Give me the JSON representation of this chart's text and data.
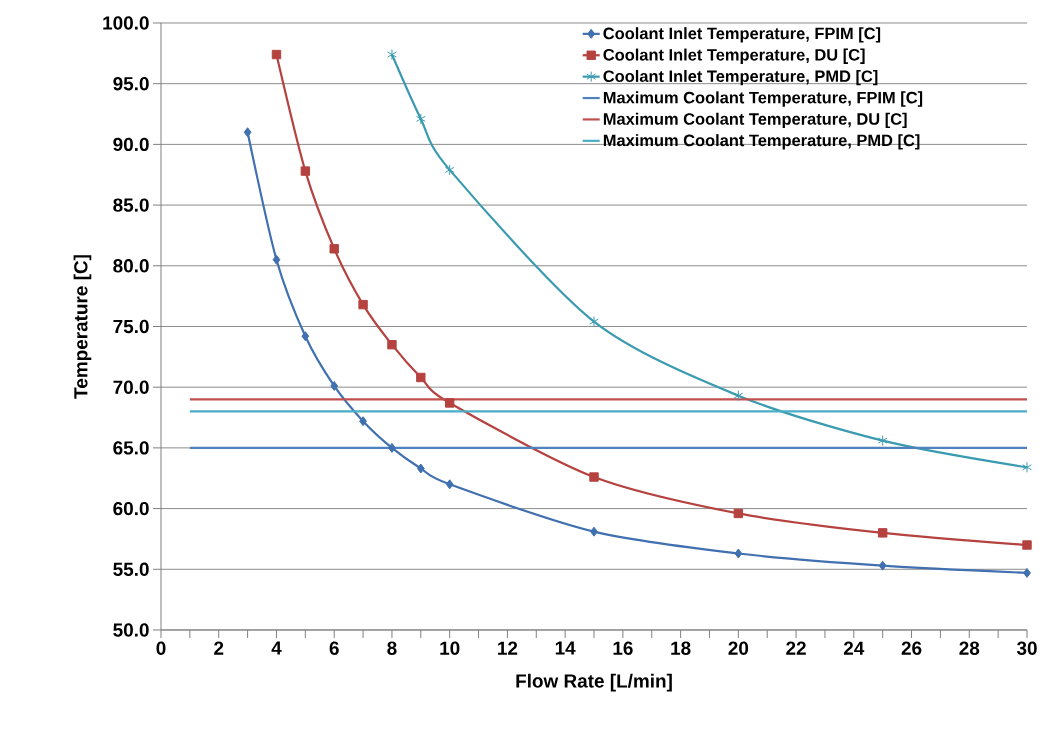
{
  "chart_data": {
    "type": "line",
    "xlabel": "Flow Rate [L/min]",
    "ylabel": "Temperature [C]",
    "xlim": [
      0,
      30
    ],
    "ylim": [
      50,
      100
    ],
    "xticks": [
      0,
      {
        "value": 1,
        "label": null
      },
      2,
      {
        "value": 3,
        "label": null
      },
      4,
      {
        "value": 5,
        "label": null
      },
      6,
      {
        "value": 7,
        "label": null
      },
      8,
      {
        "value": 9,
        "label": null
      },
      10,
      {
        "value": 11,
        "label": null
      },
      12,
      {
        "value": 13,
        "label": null
      },
      14,
      {
        "value": 15,
        "label": null
      },
      16,
      {
        "value": 17,
        "label": null
      },
      18,
      {
        "value": 19,
        "label": null
      },
      20,
      {
        "value": 21,
        "label": null
      },
      22,
      {
        "value": 23,
        "label": null
      },
      24,
      {
        "value": 25,
        "label": null
      },
      26,
      {
        "value": 27,
        "label": null
      },
      28,
      {
        "value": 29,
        "label": null
      },
      30
    ],
    "yticks": [
      {
        "value": 50,
        "label": "50.0"
      },
      {
        "value": 55,
        "label": "55.0"
      },
      {
        "value": 60,
        "label": "60.0"
      },
      {
        "value": 65,
        "label": "65.0"
      },
      {
        "value": 70,
        "label": "70.0"
      },
      {
        "value": 75,
        "label": "75.0"
      },
      {
        "value": 80,
        "label": "80.0"
      },
      {
        "value": 85,
        "label": "85.0"
      },
      {
        "value": 90,
        "label": "90.0"
      },
      {
        "value": 95,
        "label": "95.0"
      },
      {
        "value": 100,
        "label": "100.0"
      }
    ],
    "grid": "y",
    "legend": "top right",
    "series": [
      {
        "name": "Coolant Inlet Temperature, FPIM [C]",
        "color": "#4070b0",
        "marker": "diamond",
        "x": [
          3,
          4,
          5,
          6,
          7,
          8,
          9,
          10,
          15,
          20,
          25,
          30
        ],
        "values": [
          91.0,
          80.5,
          74.2,
          70.1,
          67.2,
          65.0,
          63.3,
          62.0,
          58.1,
          56.3,
          55.3,
          54.7
        ]
      },
      {
        "name": "Coolant Inlet Temperature, DU [C]",
        "color": "#b5423f",
        "marker": "square",
        "x": [
          4,
          5,
          6,
          7,
          8,
          9,
          10,
          15,
          20,
          25,
          30
        ],
        "values": [
          97.4,
          87.8,
          81.4,
          76.8,
          73.5,
          70.8,
          68.7,
          62.6,
          59.6,
          58.0,
          57.0
        ]
      },
      {
        "name": "Coolant Inlet Temperature, PMD [C]",
        "color": "#3a9bb0",
        "marker": "cross",
        "x": [
          8,
          9,
          10,
          15,
          20,
          25,
          30
        ],
        "values": [
          97.4,
          92.1,
          87.9,
          75.4,
          69.3,
          65.6,
          63.4
        ]
      },
      {
        "name": "Maximum Coolant Temperature, FPIM [C]",
        "color": "#4f81bd",
        "marker": "none",
        "x": [
          1,
          30
        ],
        "values": [
          65.0,
          65.0
        ]
      },
      {
        "name": "Maximum Coolant Temperature, DU [C]",
        "color": "#c0504d",
        "marker": "none",
        "x": [
          1,
          30
        ],
        "values": [
          69.0,
          69.0
        ]
      },
      {
        "name": "Maximum Coolant Temperature, PMD [C]",
        "color": "#4bacc6",
        "marker": "none",
        "x": [
          1,
          30
        ],
        "values": [
          68.0,
          68.0
        ]
      }
    ]
  }
}
